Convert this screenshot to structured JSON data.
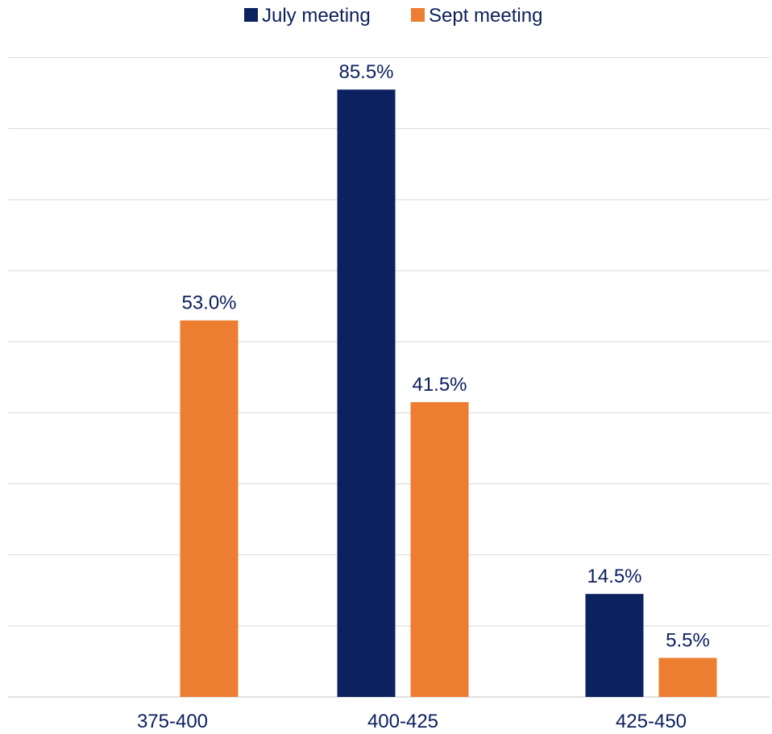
{
  "chart_data": {
    "type": "bar",
    "categories": [
      "375-400",
      "400-425",
      "425-450"
    ],
    "series": [
      {
        "name": "July meeting",
        "color": "#0b2160",
        "values": [
          null,
          85.5,
          14.5
        ],
        "labels": [
          "",
          "85.5%",
          "14.5%"
        ]
      },
      {
        "name": "Sept meeting",
        "color": "#ed7d31",
        "values": [
          53.0,
          41.5,
          5.5
        ],
        "labels": [
          "53.0%",
          "41.5%",
          "5.5%"
        ]
      }
    ],
    "ylim": [
      0,
      90
    ],
    "y_gridlines": [
      0,
      10,
      20,
      30,
      40,
      50,
      60,
      70,
      80,
      90
    ],
    "grid": true,
    "legend_position": "top-center",
    "text_color": "#0b1f5c",
    "grid_color": "#d9d9d9"
  }
}
